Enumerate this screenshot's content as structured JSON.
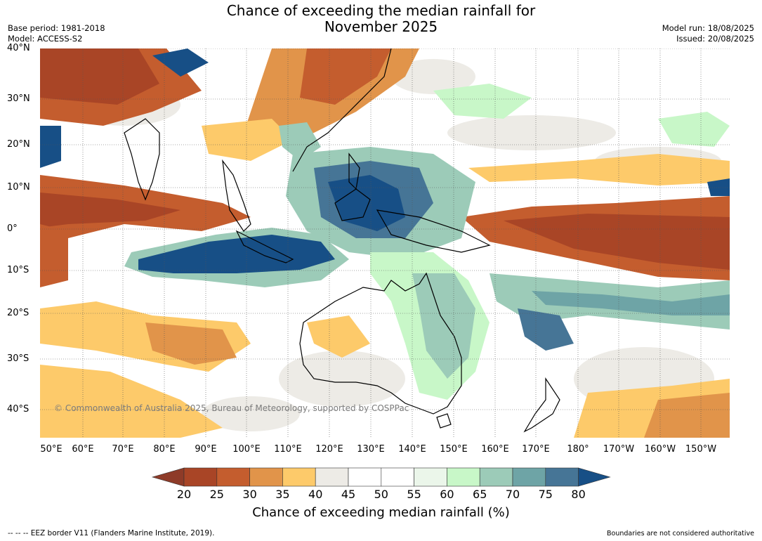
{
  "title": "Chance of exceeding the median rainfall for\nNovember 2025",
  "title_line1": "Chance of exceeding the median rainfall for",
  "title_line2": "November 2025",
  "base_period": "Base period: 1981-2018",
  "model": "Model: ACCESS-S2",
  "model_run": "Model run: 18/08/2025",
  "issued": "Issued: 20/08/2025",
  "copyright": "© Commonwealth of Australia 2025, Bureau of Meteorology, supported by COSPPac",
  "footer_left": "--  --  -- EEZ border V11 (Flanders Marine Institute, 2019).",
  "footer_right": "Boundaries are not considered authoritative",
  "lat_labels": [
    "40°N",
    "30°N",
    "20°N",
    "10°N",
    "0°",
    "10°S",
    "20°S",
    "30°S",
    "40°S"
  ],
  "lon_labels": [
    "50°E",
    "60°E",
    "70°E",
    "80°E",
    "90°E",
    "100°E",
    "110°E",
    "120°E",
    "130°E",
    "140°E",
    "150°E",
    "160°E",
    "170°E",
    "180°",
    "170°W",
    "160°W",
    "150°W"
  ],
  "colorbar": {
    "title": "Chance of exceeding median rainfall (%)",
    "ticks": [
      "20",
      "25",
      "30",
      "35",
      "40",
      "45",
      "50",
      "55",
      "60",
      "65",
      "70",
      "75",
      "80"
    ],
    "colors": [
      "#8e3b28",
      "#a94526",
      "#c45d2e",
      "#e1944a",
      "#fdca6a",
      "#edebe6",
      "#ffffff",
      "#ffffff",
      "#ebf6ea",
      "#c8f7c8",
      "#9ccbb8",
      "#6ea4a6",
      "#467596",
      "#174f86"
    ]
  }
}
